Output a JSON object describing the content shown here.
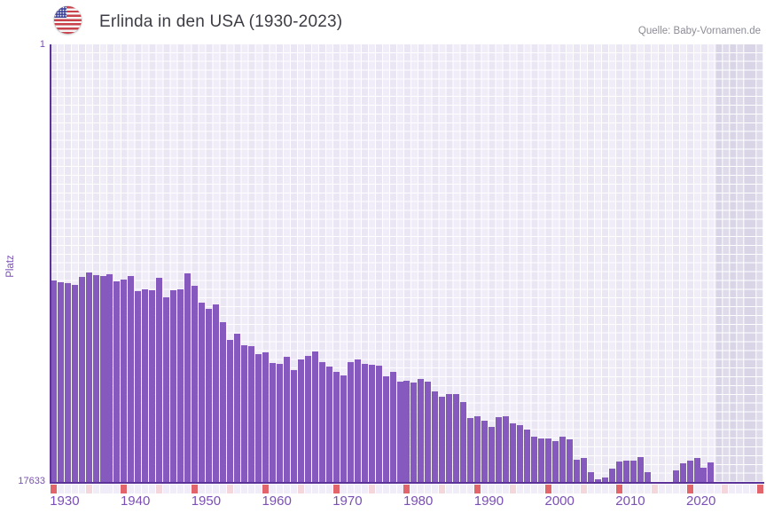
{
  "header": {
    "title": "Erlinda in den USA (1930-2023)",
    "source": "Quelle: Baby-Vornamen.de",
    "flag_icon": "us-flag"
  },
  "y_axis": {
    "label": "Platz",
    "top_tick": "1",
    "bottom_tick": "17633"
  },
  "x_axis": {
    "tick_labels": [
      "1930",
      "1940",
      "1950",
      "1960",
      "1970",
      "1980",
      "1990",
      "2000",
      "2010",
      "2020"
    ]
  },
  "year_strip": {
    "start": 1930,
    "end": 2030,
    "decade_color": "#E2656C",
    "half_decade_color": "#F3D7DC",
    "cell_color": "#F0ECF8"
  },
  "colors": {
    "bar": "#8659BE",
    "axis": "#5C3499",
    "tick_label": "#7B4FB5",
    "title": "#3C3C44",
    "source": "#8C8C96",
    "plot_cell_a": "#EBE6F4",
    "plot_cell_b": "#F1EDF8",
    "no_data_cell_a": "#D9D5E7",
    "no_data_cell_b": "#DFDBEB",
    "grid_line": "#FFFFFF"
  },
  "chart_data": {
    "type": "bar",
    "title": "Erlinda in den USA (1930-2023)",
    "name": "Erlinda",
    "region": "USA",
    "ylabel": "Platz",
    "y_axis_inverted": true,
    "ylim": [
      1,
      17633
    ],
    "x_range": [
      1930,
      2023
    ],
    "x_ticks": [
      1930,
      1940,
      1950,
      1960,
      1970,
      1980,
      1990,
      2000,
      2010,
      2020
    ],
    "missing_years": [
      2015,
      2016,
      2017
    ],
    "no_data_band_years": [
      2024,
      2030
    ],
    "note": "Platz (rank) values estimated from bar pixel heights on a linear 1..17633 axis; lower rank = taller bar",
    "years": [
      1930,
      1931,
      1932,
      1933,
      1934,
      1935,
      1936,
      1937,
      1938,
      1939,
      1940,
      1941,
      1942,
      1943,
      1944,
      1945,
      1946,
      1947,
      1948,
      1949,
      1950,
      1951,
      1952,
      1953,
      1954,
      1955,
      1956,
      1957,
      1958,
      1959,
      1960,
      1961,
      1962,
      1963,
      1964,
      1965,
      1966,
      1967,
      1968,
      1969,
      1970,
      1971,
      1972,
      1973,
      1974,
      1975,
      1976,
      1977,
      1978,
      1979,
      1980,
      1981,
      1982,
      1983,
      1984,
      1985,
      1986,
      1987,
      1988,
      1989,
      1990,
      1991,
      1992,
      1993,
      1994,
      1995,
      1996,
      1997,
      1998,
      1999,
      2000,
      2001,
      2002,
      2003,
      2004,
      2005,
      2006,
      2007,
      2008,
      2009,
      2010,
      2011,
      2012,
      2013,
      2014,
      2015,
      2016,
      2017,
      2018,
      2019,
      2020,
      2021,
      2022,
      2023
    ],
    "ranks": [
      9505,
      9577,
      9612,
      9684,
      9362,
      9183,
      9290,
      9326,
      9255,
      9541,
      9469,
      9326,
      9934,
      9862,
      9898,
      9398,
      10184,
      9898,
      9862,
      9219,
      9719,
      10398,
      10648,
      10469,
      11184,
      11899,
      11649,
      12113,
      12149,
      12470,
      12399,
      12828,
      12863,
      12577,
      13113,
      12684,
      12541,
      12363,
      12792,
      12970,
      13184,
      13327,
      12792,
      12684,
      12863,
      12899,
      12934,
      13363,
      13184,
      13577,
      13541,
      13613,
      13470,
      13577,
      13970,
      14184,
      14077,
      14077,
      14399,
      15042,
      14970,
      15149,
      15399,
      15006,
      14970,
      15256,
      15327,
      15506,
      15792,
      15863,
      15863,
      15970,
      15792,
      15899,
      16721,
      16649,
      17221,
      17506,
      17435,
      17078,
      16792,
      16756,
      16756,
      16613,
      17221,
      null,
      null,
      null,
      17149,
      16863,
      16756,
      16649,
      17042,
      16828
    ]
  }
}
